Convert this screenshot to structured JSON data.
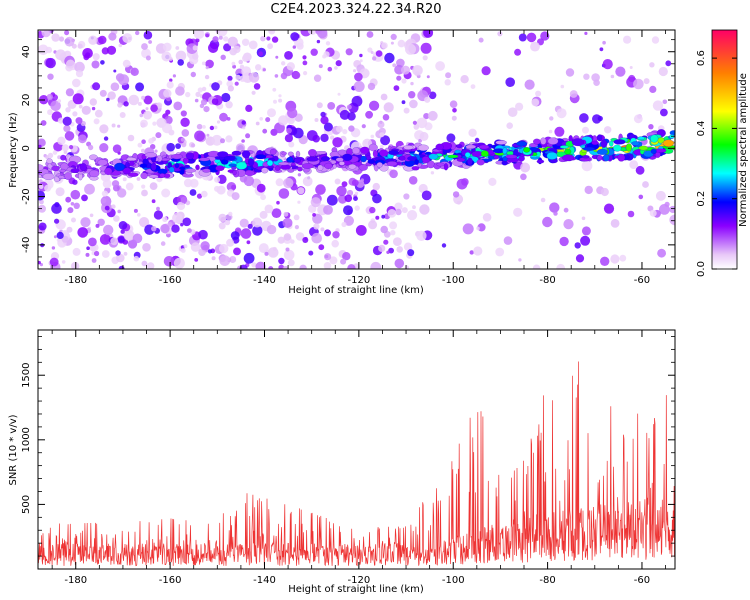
{
  "chart_data": [
    {
      "type": "heatmap",
      "title": "C2E4.2023.324.22.34.R20",
      "xlabel": "Height of straight line (km)",
      "ylabel": "Frequency (Hz)",
      "xlim": [
        -188,
        -53
      ],
      "ylim": [
        -50,
        49
      ],
      "xticks": [
        -180,
        -160,
        -140,
        -120,
        -100,
        -80,
        -60
      ],
      "yticks": [
        -40,
        -20,
        0,
        20,
        40
      ],
      "ridge": {
        "x": [
          -188,
          -175,
          -160,
          -145,
          -130,
          -120,
          -110,
          -100,
          -90,
          -80,
          -70,
          -60,
          -55
        ],
        "freq": [
          -9,
          -8,
          -7,
          -6,
          -5,
          -4,
          -4,
          -3,
          -2,
          -1,
          0,
          1,
          2
        ],
        "amplitude": [
          0.12,
          0.15,
          0.3,
          0.33,
          0.18,
          0.2,
          0.3,
          0.33,
          0.38,
          0.42,
          0.5,
          0.55,
          0.55
        ]
      },
      "colorbar": {
        "label": "Normalized spectral amplitude",
        "range": [
          0.0,
          0.68
        ],
        "ticks": [
          "0.0",
          "0.2",
          "0.4",
          "0.6"
        ]
      }
    },
    {
      "type": "line",
      "xlabel": "Height of straight line (km)",
      "ylabel": "SNR (10 * v/v)",
      "xlim": [
        -188,
        -53
      ],
      "ylim": [
        0,
        1850
      ],
      "xticks": [
        -180,
        -160,
        -140,
        -120,
        -100,
        -80,
        -60
      ],
      "yticks": [
        500,
        1000,
        1500
      ],
      "color": "#ee3333",
      "envelope": {
        "x": [
          -188,
          -170,
          -150,
          -145,
          -135,
          -120,
          -110,
          -102,
          -98,
          -93,
          -90,
          -85,
          -80,
          -77,
          -75,
          -72,
          -70,
          -68,
          -65,
          -62,
          -60,
          -58,
          -56,
          -54
        ],
        "peak": [
          350,
          360,
          420,
          600,
          500,
          320,
          330,
          800,
          1150,
          1250,
          800,
          850,
          1450,
          1100,
          1650,
          1600,
          1300,
          1350,
          1200,
          1100,
          1450,
          1100,
          1830,
          1050
        ]
      }
    }
  ]
}
